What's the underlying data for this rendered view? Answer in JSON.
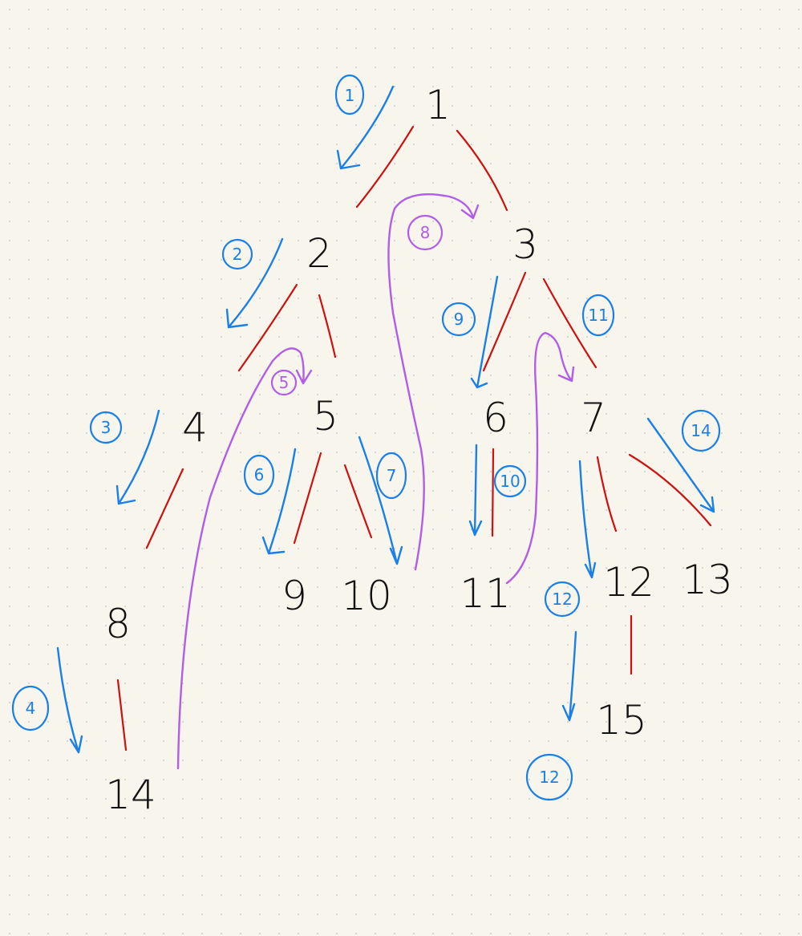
{
  "colors": {
    "background": "#f7f5ec",
    "dots": "#cfd2d6",
    "ink": "#111111",
    "tree_edge": "#cc1111",
    "step_arrow": "#1a7fe6",
    "jump_arrow": "#b25de6"
  },
  "nodes": [
    {
      "id": "n1",
      "label": "1"
    },
    {
      "id": "n2",
      "label": "2"
    },
    {
      "id": "n3",
      "label": "3"
    },
    {
      "id": "n4",
      "label": "4"
    },
    {
      "id": "n5",
      "label": "5"
    },
    {
      "id": "n6",
      "label": "6"
    },
    {
      "id": "n7",
      "label": "7"
    },
    {
      "id": "n8",
      "label": "8"
    },
    {
      "id": "n9",
      "label": "9"
    },
    {
      "id": "n10",
      "label": "10"
    },
    {
      "id": "n11",
      "label": "11"
    },
    {
      "id": "n12",
      "label": "12"
    },
    {
      "id": "n13",
      "label": "13"
    },
    {
      "id": "n14",
      "label": "14"
    },
    {
      "id": "n15",
      "label": "15"
    }
  ],
  "step_labels": [
    {
      "id": "s1",
      "label": "1",
      "color": "blue"
    },
    {
      "id": "s2",
      "label": "2",
      "color": "blue"
    },
    {
      "id": "s3",
      "label": "3",
      "color": "blue"
    },
    {
      "id": "s4",
      "label": "4",
      "color": "blue"
    },
    {
      "id": "s5",
      "label": "5",
      "color": "purple"
    },
    {
      "id": "s6",
      "label": "6",
      "color": "blue"
    },
    {
      "id": "s7",
      "label": "7",
      "color": "blue"
    },
    {
      "id": "s8",
      "label": "8",
      "color": "purple"
    },
    {
      "id": "s9",
      "label": "9",
      "color": "blue"
    },
    {
      "id": "s10",
      "label": "10",
      "color": "blue"
    },
    {
      "id": "s11",
      "label": "11",
      "color": "blue"
    },
    {
      "id": "s12a",
      "label": "12",
      "color": "blue"
    },
    {
      "id": "s12b",
      "label": "12",
      "color": "blue"
    },
    {
      "id": "s14",
      "label": "14",
      "color": "blue"
    }
  ]
}
